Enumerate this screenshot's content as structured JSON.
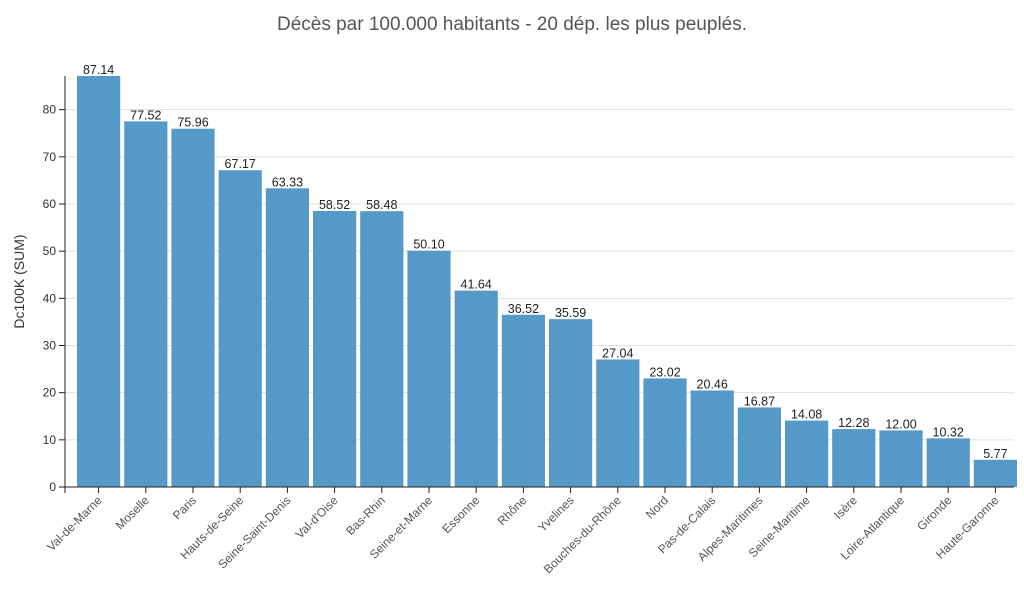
{
  "chart_data": {
    "type": "bar",
    "title": "Décès par 100.000 habitants - 20 dép. les plus peuplés.",
    "xlabel": "",
    "ylabel": "Dc100K (SUM)",
    "ylim": [
      0,
      87.14
    ],
    "yticks": [
      0,
      10,
      20,
      30,
      40,
      50,
      60,
      70,
      80
    ],
    "grid": true,
    "bar_color": "#5499c7",
    "categories": [
      "Val-de-Marne",
      "Moselle",
      "Paris",
      "Hauts-de-Seine",
      "Seine-Saint-Denis",
      "Val-d'Oise",
      "Bas-Rhin",
      "Seine-et-Marne",
      "Essonne",
      "Rhône",
      "Yvelines",
      "Bouches-du-Rhône",
      "Nord",
      "Pas-de-Calais",
      "Alpes-Maritimes",
      "Seine-Maritime",
      "Isère",
      "Loire-Atlantique",
      "Gironde",
      "Haute-Garonne"
    ],
    "values": [
      87.14,
      77.52,
      75.96,
      67.17,
      63.33,
      58.52,
      58.48,
      50.1,
      41.64,
      36.52,
      35.59,
      27.04,
      23.02,
      20.46,
      16.87,
      14.08,
      12.28,
      12.0,
      10.32,
      5.77
    ],
    "value_labels": [
      "87.14",
      "77.52",
      "75.96",
      "67.17",
      "63.33",
      "58.52",
      "58.48",
      "50.10",
      "41.64",
      "36.52",
      "35.59",
      "27.04",
      "23.02",
      "20.46",
      "16.87",
      "14.08",
      "12.28",
      "12.00",
      "10.32",
      "5.77"
    ]
  }
}
